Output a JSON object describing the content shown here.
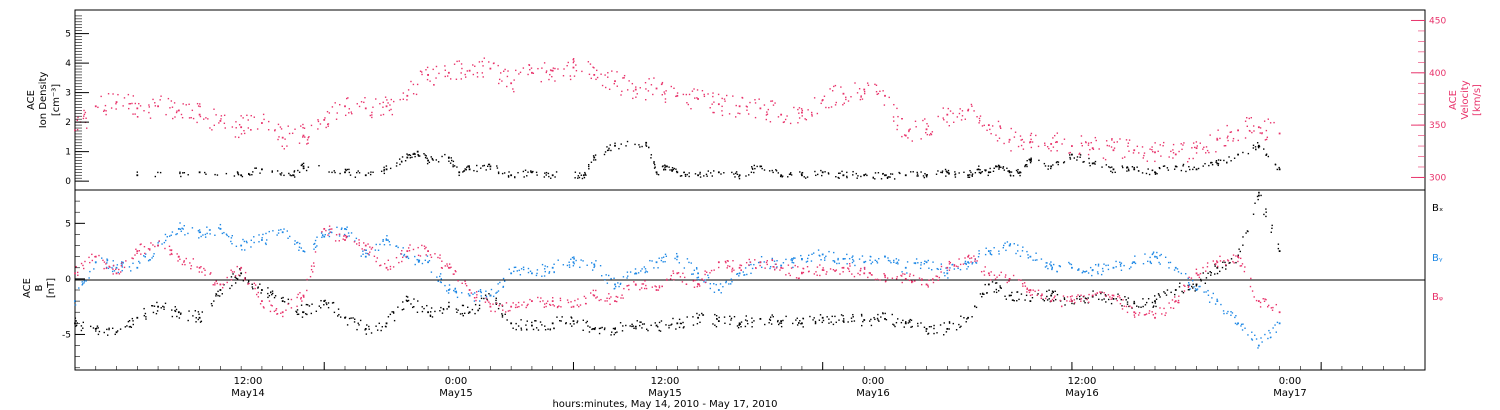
{
  "chart_data": [
    {
      "type": "scatter",
      "panel": "top",
      "ylabel_left": [
        "ACE",
        "Ion Density",
        "[cm⁻³]"
      ],
      "ylabel_right": [
        "ACE",
        "Velocity",
        "[km/s]"
      ],
      "ylim_left": [
        -0.3,
        5.8
      ],
      "ylim_right": [
        288,
        460
      ],
      "yticks_left": [
        "0",
        "1",
        "2",
        "3",
        "4",
        "5"
      ],
      "yticks_right": [
        "300",
        "350",
        "400",
        "450"
      ],
      "series": [
        {
          "name": "",
          "color": "#000000",
          "axis": "left",
          "x": [
            3,
            6,
            8,
            9,
            10.5,
            11,
            13,
            14,
            15,
            16,
            16.5,
            17,
            18,
            18.5,
            19,
            20,
            21,
            22,
            23,
            24.5,
            25,
            26,
            27.5,
            28,
            28.5,
            29,
            30,
            31,
            32,
            33,
            34,
            35,
            36,
            37,
            38,
            39,
            40,
            41,
            42,
            43,
            43.5,
            44,
            44.5,
            45,
            45.5,
            46,
            47,
            48,
            49,
            50,
            51,
            52,
            53,
            54,
            55,
            56,
            57,
            58
          ],
          "y": [
            0.2,
            0.3,
            0.2,
            0.4,
            0.2,
            0.5,
            0.3,
            0.2,
            0.4,
            0.8,
            1.0,
            0.7,
            0.8,
            0.3,
            0.4,
            0.5,
            0.2,
            0.3,
            0.2,
            0.2,
            0.8,
            1.2,
            1.3,
            0.3,
            0.5,
            0.3,
            0.2,
            0.3,
            0.2,
            0.5,
            0.2,
            0.2,
            0.3,
            0.2,
            0.2,
            0.2,
            0.2,
            0.2,
            0.3,
            0.2,
            0.4,
            0.3,
            0.5,
            0.3,
            0.3,
            0.7,
            0.5,
            0.9,
            0.6,
            0.4,
            0.4,
            0.3,
            0.5,
            0.4,
            0.6,
            0.9,
            1.2,
            0.4
          ]
        },
        {
          "name": "",
          "color": "#e8336b",
          "axis": "right",
          "x": [
            0,
            1,
            2,
            3,
            4,
            5,
            6,
            7,
            8,
            9,
            10,
            11,
            12,
            13,
            14,
            15,
            16,
            17,
            18,
            19,
            20,
            21,
            22,
            23,
            24,
            25,
            26,
            27,
            28,
            29,
            30,
            31,
            32,
            33,
            34,
            35,
            36,
            37,
            38,
            39,
            40,
            41,
            42,
            43,
            44,
            45,
            46,
            47,
            48,
            49,
            50,
            51,
            52,
            53,
            54,
            55,
            56,
            57,
            58
          ],
          "y": [
            345,
            368,
            372,
            366,
            368,
            364,
            360,
            354,
            348,
            352,
            338,
            340,
            355,
            368,
            366,
            368,
            378,
            398,
            400,
            402,
            404,
            390,
            400,
            402,
            405,
            398,
            392,
            384,
            385,
            378,
            375,
            370,
            368,
            366,
            360,
            362,
            374,
            380,
            384,
            378,
            340,
            346,
            360,
            364,
            350,
            336,
            334,
            332,
            330,
            328,
            326,
            326,
            324,
            322,
            328,
            336,
            345,
            348,
            342
          ]
        }
      ]
    },
    {
      "type": "scatter",
      "panel": "bottom",
      "ylabel": [
        "ACE",
        "B",
        "[nT]"
      ],
      "ylim": [
        -8.2,
        8.0
      ],
      "yticks": [
        "-5",
        "0",
        "5"
      ],
      "series": [
        {
          "name": "Bₓ",
          "color": "#000000",
          "x": [
            0,
            1,
            2,
            3,
            4,
            5,
            6,
            7,
            8,
            9,
            10,
            11,
            12,
            13,
            14,
            15,
            16,
            17,
            18,
            19,
            20,
            21,
            22,
            23,
            24,
            25,
            26,
            27,
            28,
            29,
            30,
            31,
            32,
            33,
            34,
            35,
            36,
            37,
            38,
            39,
            40,
            41,
            42,
            43,
            44,
            45,
            46,
            47,
            48,
            49,
            50,
            51,
            52,
            53,
            54,
            55,
            56,
            57,
            58
          ],
          "y": [
            -4.0,
            -4.5,
            -4.8,
            -3.5,
            -2.5,
            -3.0,
            -3.5,
            -1.0,
            0.5,
            -1.0,
            -2.0,
            -3.0,
            -2.0,
            -3.5,
            -4.5,
            -4.0,
            -2.0,
            -3.0,
            -2.5,
            -3.0,
            -1.5,
            -4.0,
            -4.2,
            -4.0,
            -3.8,
            -4.5,
            -4.5,
            -4.3,
            -4.2,
            -4.0,
            -3.5,
            -3.8,
            -4.0,
            -3.6,
            -3.8,
            -4.0,
            -3.5,
            -3.8,
            -3.7,
            -3.6,
            -4.0,
            -4.5,
            -4.5,
            -3.5,
            -0.5,
            -1.5,
            -2.0,
            -1.5,
            -2.0,
            -1.6,
            -1.8,
            -2.2,
            -2.0,
            -1.0,
            -0.5,
            1.0,
            2.0,
            7.5,
            2.5
          ]
        },
        {
          "name": "Bᵧ",
          "color": "#1e88e5",
          "x": [
            0,
            1,
            2,
            3,
            4,
            5,
            6,
            7,
            8,
            9,
            10,
            11,
            12,
            13,
            14,
            15,
            16,
            17,
            18,
            19,
            20,
            21,
            22,
            23,
            24,
            25,
            26,
            27,
            28,
            29,
            30,
            31,
            32,
            33,
            34,
            35,
            36,
            37,
            38,
            39,
            40,
            41,
            42,
            43,
            44,
            45,
            46,
            47,
            48,
            49,
            50,
            51,
            52,
            53,
            54,
            55,
            56,
            57,
            58
          ],
          "y": [
            -2.0,
            1.5,
            1.0,
            1.0,
            3.0,
            4.5,
            4.2,
            4.5,
            3.0,
            3.5,
            4.2,
            2.5,
            3.8,
            4.5,
            2.0,
            3.5,
            2.0,
            1.5,
            -1.0,
            -1.5,
            -1.5,
            0.5,
            0.5,
            1.0,
            1.5,
            1.3,
            -0.5,
            0.5,
            1.5,
            2.0,
            0.5,
            -1.0,
            0.5,
            1.5,
            1.2,
            1.8,
            2.2,
            1.8,
            1.5,
            2.0,
            1.0,
            1.5,
            0.5,
            1.5,
            2.5,
            3.0,
            2.0,
            1.2,
            1.0,
            0.8,
            1.0,
            1.5,
            2.0,
            1.0,
            -1.0,
            -2.0,
            -4.0,
            -6.0,
            -4.0
          ]
        },
        {
          "name": "Bᵩ",
          "color": "#e8336b",
          "x": [
            0,
            1,
            2,
            3,
            4,
            5,
            6,
            7,
            8,
            9,
            10,
            11,
            12,
            13,
            14,
            15,
            16,
            17,
            18,
            19,
            20,
            21,
            22,
            23,
            24,
            25,
            26,
            27,
            28,
            29,
            30,
            31,
            32,
            33,
            34,
            35,
            36,
            37,
            38,
            39,
            40,
            41,
            42,
            43,
            44,
            45,
            46,
            47,
            48,
            49,
            50,
            51,
            52,
            53,
            54,
            55,
            56,
            57,
            58
          ],
          "y": [
            0.5,
            2.0,
            0.5,
            2.5,
            3.0,
            2.0,
            1.0,
            -0.5,
            1.0,
            -2.0,
            -3.0,
            -1.5,
            4.5,
            3.5,
            3.0,
            1.0,
            2.5,
            2.5,
            1.0,
            -1.0,
            -2.5,
            -2.5,
            -2.0,
            -2.0,
            -2.5,
            -1.5,
            -2.0,
            -0.5,
            -1.0,
            0.5,
            -0.5,
            1.5,
            1.0,
            1.5,
            1.0,
            0.5,
            0.8,
            1.0,
            0.5,
            0.3,
            0.0,
            -0.5,
            1.0,
            2.0,
            0.5,
            0.0,
            -1.0,
            -2.0,
            -2.0,
            -1.5,
            -1.5,
            -3.0,
            -3.5,
            -2.0,
            0.5,
            1.5,
            2.0,
            -2.0,
            -3.0
          ]
        }
      ]
    }
  ],
  "xaxis": {
    "ticks": [
      {
        "time": "12:00",
        "date": "May14"
      },
      {
        "time": "0:00",
        "date": "May15"
      },
      {
        "time": "12:00",
        "date": "May15"
      },
      {
        "time": "0:00",
        "date": "May16"
      },
      {
        "time": "12:00",
        "date": "May16"
      },
      {
        "time": "0:00",
        "date": "May17"
      }
    ],
    "title": "hours:minutes, May 14, 2010 - May 17, 2010"
  }
}
